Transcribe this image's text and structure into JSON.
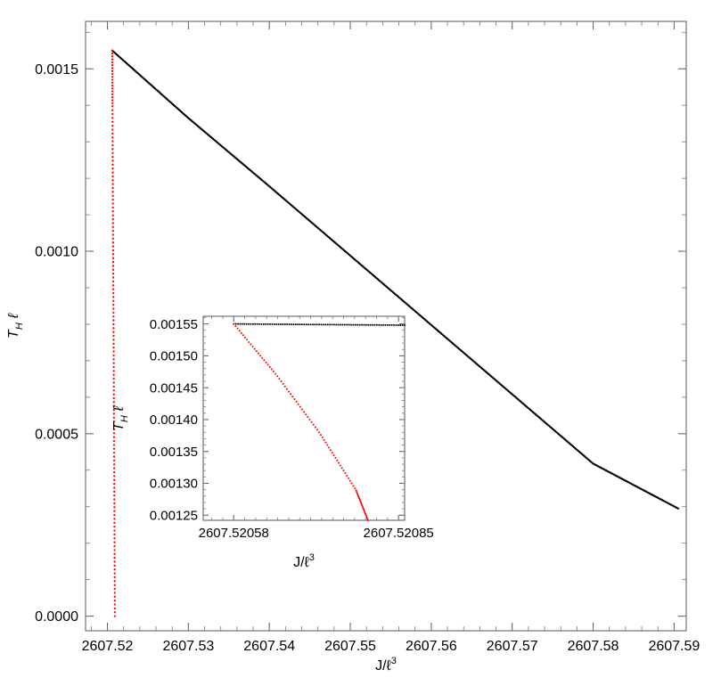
{
  "chart_data": [
    {
      "id": "main",
      "type": "scatter",
      "xlabel_main": "J/ℓ",
      "xlabel_sup": "3",
      "ylabel_main": "T",
      "ylabel_sub": "H",
      "ylabel_tail": "ℓ",
      "xlim": [
        2607.5173,
        2607.5915
      ],
      "ylim": [
        -4e-05,
        0.00163
      ],
      "x_ticks": [
        {
          "value": 2607.52,
          "label": "2607.52"
        },
        {
          "value": 2607.53,
          "label": "2607.53"
        },
        {
          "value": 2607.54,
          "label": "2607.54"
        },
        {
          "value": 2607.55,
          "label": "2607.55"
        },
        {
          "value": 2607.56,
          "label": "2607.56"
        },
        {
          "value": 2607.57,
          "label": "2607.57"
        },
        {
          "value": 2607.58,
          "label": "2607.58"
        },
        {
          "value": 2607.59,
          "label": "2607.59"
        }
      ],
      "y_ticks": [
        {
          "value": 0.0,
          "label": "0.0000"
        },
        {
          "value": 0.0005,
          "label": "0.0005"
        },
        {
          "value": 0.001,
          "label": "0.0010"
        },
        {
          "value": 0.0015,
          "label": "0.0015"
        }
      ],
      "grid": false,
      "series": [
        {
          "color": "#000000",
          "x": [
            2607.5206,
            2607.53,
            2607.54,
            2607.55,
            2607.56,
            2607.57,
            2607.58,
            2607.5905
          ],
          "y": [
            0.00155,
            0.001365,
            0.001178,
            0.000988,
            0.000798,
            0.000608,
            0.000418,
            0.000295
          ]
        },
        {
          "color": "#ff0000",
          "x": [
            2607.5206,
            2607.52062,
            2607.52066,
            2607.5207,
            2607.52076,
            2607.5208,
            2607.52084,
            2607.52088,
            2607.52092
          ],
          "y": [
            0.00155,
            0.0014,
            0.0012,
            0.001,
            0.0008,
            0.0006,
            0.0004,
            0.0002,
            0.0
          ]
        }
      ]
    },
    {
      "id": "inset",
      "type": "scatter",
      "xlabel_main": "J/ℓ",
      "xlabel_sup": "3",
      "ylabel_main": "T",
      "ylabel_sub": "H",
      "ylabel_tail": "ℓ",
      "xlim": [
        2607.52053,
        2607.52086
      ],
      "ylim": [
        0.001242,
        0.001562
      ],
      "x_ticks": [
        {
          "value": 2607.52058,
          "label": "2607.52058"
        },
        {
          "value": 2607.52085,
          "label": "2607.52085"
        }
      ],
      "y_ticks": [
        {
          "value": 0.00125,
          "label": "0.00125"
        },
        {
          "value": 0.0013,
          "label": "0.00130"
        },
        {
          "value": 0.00135,
          "label": "0.00135"
        },
        {
          "value": 0.0014,
          "label": "0.00140"
        },
        {
          "value": 0.00145,
          "label": "0.00145"
        },
        {
          "value": 0.0015,
          "label": "0.00150"
        },
        {
          "value": 0.00155,
          "label": "0.00155"
        }
      ],
      "grid": false,
      "series": [
        {
          "color": "#000000",
          "x": [
            2607.52058,
            2607.52086
          ],
          "y": [
            0.00155,
            0.001548
          ]
        },
        {
          "color": "#ff0000",
          "x": [
            2607.52058,
            2607.52065,
            2607.52072,
            2607.52078,
            2607.5208
          ],
          "y": [
            0.00155,
            0.00147,
            0.00138,
            0.00129,
            0.001242
          ]
        }
      ]
    }
  ]
}
